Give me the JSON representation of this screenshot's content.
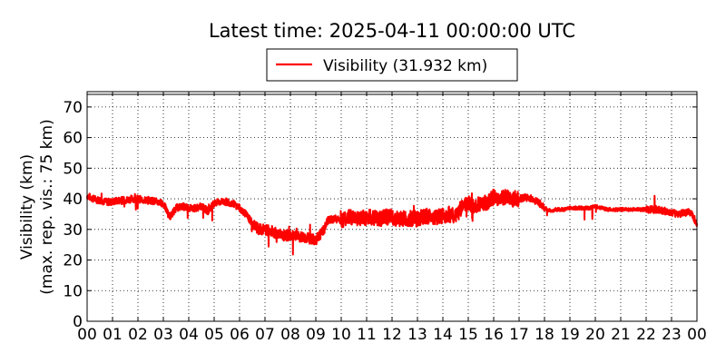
{
  "chart_data": {
    "type": "line",
    "title": "Latest time: 2025-04-11 00:00:00 UTC",
    "ylabel_line1": "Visibility (km)",
    "ylabel_line2": "(max. rep. vis.: 75 km)",
    "xlabel": "",
    "xlim": [
      0,
      24
    ],
    "ylim": [
      0,
      75
    ],
    "x_ticks": [
      "00",
      "01",
      "02",
      "03",
      "04",
      "05",
      "06",
      "07",
      "08",
      "09",
      "10",
      "11",
      "12",
      "13",
      "14",
      "15",
      "16",
      "17",
      "18",
      "19",
      "20",
      "21",
      "22",
      "23",
      "00"
    ],
    "y_ticks": [
      0,
      10,
      20,
      30,
      40,
      50,
      60,
      70
    ],
    "grid": true,
    "legend_position": "top-center",
    "series": [
      {
        "name": "Visibility (31.932 km)",
        "color": "#ff0000",
        "x": [
          0,
          0.25,
          0.5,
          0.75,
          1,
          1.25,
          1.5,
          1.75,
          2,
          2.25,
          2.5,
          2.75,
          3,
          3.25,
          3.5,
          3.75,
          4,
          4.25,
          4.5,
          4.75,
          5,
          5.25,
          5.5,
          5.75,
          6,
          6.25,
          6.5,
          6.75,
          7,
          7.25,
          7.5,
          7.75,
          8,
          8.25,
          8.5,
          8.75,
          9,
          9.25,
          9.5,
          9.75,
          10,
          10.25,
          10.5,
          10.75,
          11,
          11.25,
          11.5,
          11.75,
          12,
          12.25,
          12.5,
          12.75,
          13,
          13.25,
          13.5,
          13.75,
          14,
          14.25,
          14.5,
          14.75,
          15,
          15.25,
          15.5,
          15.75,
          16,
          16.25,
          16.5,
          16.75,
          17,
          17.25,
          17.5,
          17.75,
          18,
          18.25,
          18.5,
          18.75,
          19,
          19.25,
          19.5,
          19.75,
          20,
          20.25,
          20.5,
          20.75,
          21,
          21.25,
          21.5,
          21.75,
          22,
          22.25,
          22.5,
          22.75,
          23,
          23.25,
          23.5,
          23.75,
          24
        ],
        "y": [
          41,
          40,
          39.5,
          39,
          39,
          39.5,
          39.5,
          40,
          40,
          39.5,
          39.5,
          39,
          38.5,
          34,
          37,
          37.5,
          37,
          37,
          37.5,
          36,
          38.5,
          39,
          39,
          38.5,
          37,
          35,
          32,
          30,
          30,
          29.5,
          28.5,
          28,
          28,
          27.5,
          27.5,
          27,
          26.5,
          29,
          33,
          33.5,
          33,
          34,
          34,
          33.5,
          34,
          34,
          33.5,
          34,
          34,
          33.5,
          33.5,
          33.5,
          33.5,
          34,
          34.5,
          34,
          34.5,
          35,
          34,
          37.5,
          38.5,
          38,
          38.5,
          39,
          40.5,
          40,
          40.5,
          40,
          40,
          40.5,
          40,
          39,
          37,
          36,
          36.5,
          36.5,
          37,
          37,
          37,
          37,
          37.5,
          37,
          36.5,
          36.5,
          36.5,
          36.5,
          36.5,
          36.5,
          36.5,
          36.5,
          36.5,
          36,
          35.5,
          35,
          35.5,
          35.5,
          32
        ]
      }
    ]
  }
}
